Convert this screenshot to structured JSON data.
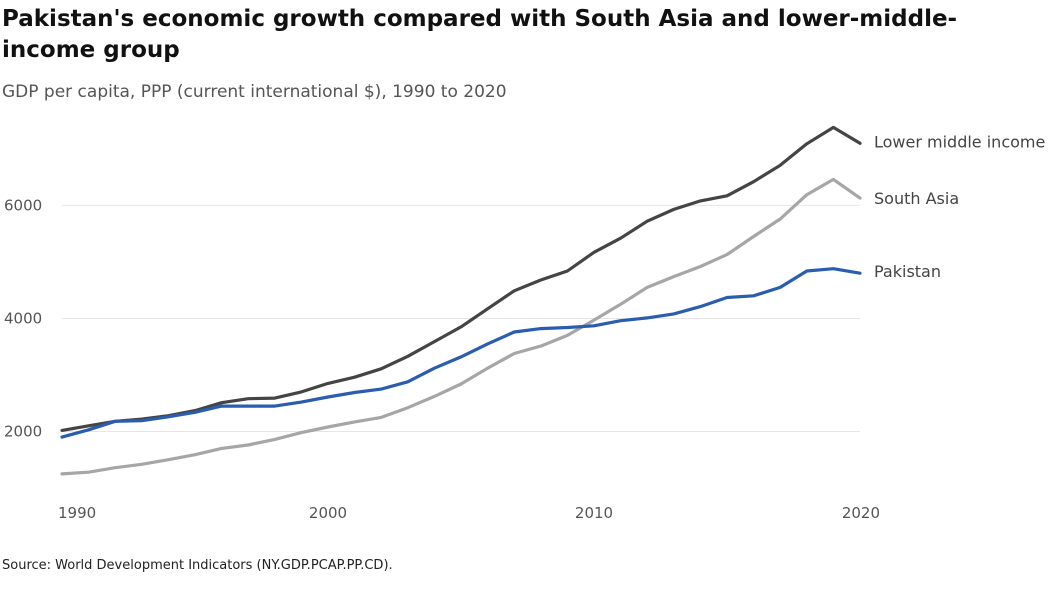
{
  "title": "Pakistan's economic growth compared with South Asia and lower-middle-income group",
  "subtitle": "GDP per capita, PPP (current international $), 1990 to 2020",
  "source": "Source: World Development Indicators (NY.GDP.PCAP.PP.CD).",
  "chart_data": {
    "type": "line",
    "xlim": [
      1990,
      2020
    ],
    "ylim": [
      1000,
      7600
    ],
    "x_ticks": [
      1990,
      2000,
      2010,
      2020
    ],
    "y_ticks": [
      2000,
      4000,
      6000
    ],
    "grid": true,
    "x": [
      1990,
      1991,
      1992,
      1993,
      1994,
      1995,
      1996,
      1997,
      1998,
      1999,
      2000,
      2001,
      2002,
      2003,
      2004,
      2005,
      2006,
      2007,
      2008,
      2009,
      2010,
      2011,
      2012,
      2013,
      2014,
      2015,
      2016,
      2017,
      2018,
      2019,
      2020
    ],
    "series": [
      {
        "name": "Lower middle income",
        "color": "#444444",
        "values": [
          2020,
          2100,
          2180,
          2220,
          2280,
          2370,
          2510,
          2580,
          2590,
          2700,
          2850,
          2960,
          3110,
          3330,
          3590,
          3850,
          4170,
          4490,
          4680,
          4840,
          5170,
          5420,
          5720,
          5930,
          6080,
          6170,
          6420,
          6710,
          7090,
          7380,
          7100
        ]
      },
      {
        "name": "South Asia",
        "color": "#a6a6a6",
        "values": [
          1250,
          1280,
          1360,
          1420,
          1500,
          1590,
          1700,
          1760,
          1860,
          1980,
          2080,
          2170,
          2250,
          2420,
          2620,
          2840,
          3120,
          3380,
          3510,
          3700,
          3970,
          4250,
          4550,
          4740,
          4920,
          5130,
          5450,
          5760,
          6190,
          6460,
          6130
        ]
      },
      {
        "name": "Pakistan",
        "color": "#2a5db0",
        "values": [
          1900,
          2030,
          2180,
          2190,
          2260,
          2340,
          2450,
          2450,
          2450,
          2520,
          2610,
          2690,
          2750,
          2880,
          3120,
          3320,
          3550,
          3760,
          3820,
          3840,
          3870,
          3960,
          4010,
          4080,
          4210,
          4370,
          4400,
          4550,
          4840,
          4880,
          4800
        ]
      }
    ]
  }
}
